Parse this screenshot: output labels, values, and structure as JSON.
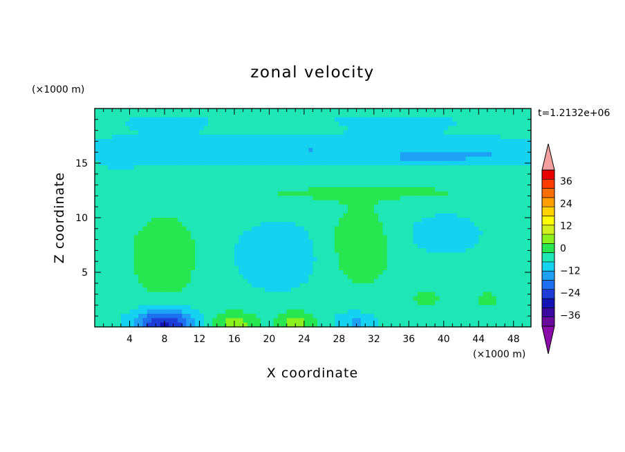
{
  "chart_data": {
    "type": "heatmap",
    "title": "zonal velocity",
    "xlabel": "X coordinate",
    "ylabel": "Z coordinate",
    "x_unit": "(×1000 m)",
    "y_unit": "(×1000 m)",
    "time_label": "t=1.2132e+06",
    "xlim": [
      0,
      50
    ],
    "ylim": [
      0,
      20
    ],
    "x_ticks": [
      4,
      8,
      12,
      16,
      20,
      24,
      28,
      32,
      36,
      40,
      44,
      48
    ],
    "y_ticks": [
      5,
      10,
      15
    ],
    "colorbar": {
      "min": -42,
      "max": 42,
      "step": 6,
      "tick_values": [
        -36,
        -24,
        -12,
        0,
        12,
        24,
        36
      ],
      "tick_labels": [
        "−36",
        "−24",
        "−12",
        "0",
        "12",
        "24",
        "36"
      ],
      "extend": "both",
      "colors": [
        "#6a0a9a",
        "#3a0aa0",
        "#1414b4",
        "#1e3cd8",
        "#1e6ef0",
        "#1ea0f5",
        "#14d2f0",
        "#1ee6b4",
        "#28e650",
        "#8cf01e",
        "#d2f01e",
        "#ffff00",
        "#ffd200",
        "#ffa000",
        "#ff6e00",
        "#ff3c00",
        "#e60000"
      ],
      "under_color": "#8a0aaa",
      "over_color": "#f5a0a0"
    },
    "field": {
      "background": 3,
      "features": [
        {
          "x": 25,
          "z": 19.2,
          "sx": 30,
          "sz": 0.7,
          "a": -2
        },
        {
          "x": 8,
          "z": 18.5,
          "sx": 6,
          "sz": 0.8,
          "a": -4
        },
        {
          "x": 35,
          "z": 18.5,
          "sx": 8,
          "sz": 0.8,
          "a": -4
        },
        {
          "x": 25,
          "z": 16.2,
          "sx": 40,
          "sz": 1.3,
          "a": -9
        },
        {
          "x": 38,
          "z": 15.3,
          "sx": 4,
          "sz": 0.5,
          "a": -6
        },
        {
          "x": 45,
          "z": 15.5,
          "sx": 5,
          "sz": 0.9,
          "a": -3
        },
        {
          "x": 3,
          "z": 14.9,
          "sx": 1.5,
          "sz": 0.4,
          "a": -6
        },
        {
          "x": 35,
          "z": 12.3,
          "sx": 15,
          "sz": 0.8,
          "a": 4
        },
        {
          "x": 20,
          "z": 12.0,
          "sx": 12,
          "sz": 0.8,
          "a": 2
        },
        {
          "x": 8,
          "z": 6.5,
          "sx": 3.5,
          "sz": 3.5,
          "a": 9
        },
        {
          "x": 30.5,
          "z": 7.5,
          "sx": 3.5,
          "sz": 3.5,
          "a": 9
        },
        {
          "x": 21,
          "z": 6.5,
          "sx": 5.5,
          "sz": 3.5,
          "a": -7
        },
        {
          "x": 40,
          "z": 8.5,
          "sx": 6,
          "sz": 2.5,
          "a": -5
        },
        {
          "x": 8,
          "z": 0.2,
          "sx": 3.5,
          "sz": 1.4,
          "a": -28
        },
        {
          "x": 16,
          "z": 0.2,
          "sx": 2.5,
          "sz": 1.2,
          "a": 12
        },
        {
          "x": 23,
          "z": 0.2,
          "sx": 2.2,
          "sz": 1.2,
          "a": 12
        },
        {
          "x": 30,
          "z": 0.4,
          "sx": 2.5,
          "sz": 1.0,
          "a": -10
        },
        {
          "x": 38,
          "z": 2.5,
          "sx": 2.5,
          "sz": 1.2,
          "a": 4
        },
        {
          "x": 45,
          "z": 2.5,
          "sx": 2,
          "sz": 1.2,
          "a": 4
        }
      ]
    }
  }
}
